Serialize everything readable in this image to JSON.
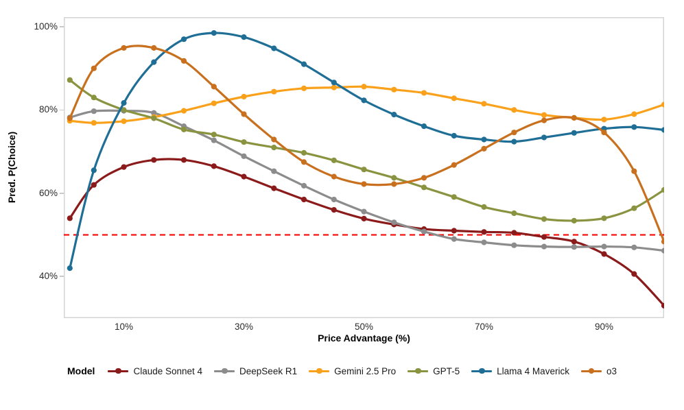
{
  "page": {
    "background": "#ffffff"
  },
  "chart_data": {
    "type": "line",
    "title": "",
    "xlabel": "Price Advantage (%)",
    "ylabel": "Pred. P(Choice)",
    "xlim": [
      0,
      100
    ],
    "ylim": [
      30,
      102.3
    ],
    "grid": false,
    "legend": {
      "title": "Model",
      "position": "bottom"
    },
    "reference_line": {
      "y": 50,
      "color": "#FF0000",
      "style": "dashed"
    },
    "x_ticks": [
      {
        "value": 10,
        "label": "10%"
      },
      {
        "value": 30,
        "label": "30%"
      },
      {
        "value": 50,
        "label": "50%"
      },
      {
        "value": 70,
        "label": "70%"
      },
      {
        "value": 90,
        "label": "90%"
      }
    ],
    "y_ticks": [
      {
        "value": 40,
        "label": "40%"
      },
      {
        "value": 60,
        "label": "60%"
      },
      {
        "value": 80,
        "label": "80%"
      },
      {
        "value": 100,
        "label": "100%"
      }
    ],
    "x": [
      1,
      5,
      10,
      15,
      20,
      25,
      30,
      35,
      40,
      45,
      50,
      55,
      60,
      65,
      70,
      75,
      80,
      85,
      90,
      95,
      100
    ],
    "series": [
      {
        "name": "Claude Sonnet 4",
        "color": "#8B1A1A",
        "values": [
          54,
          62,
          66.3,
          68,
          68,
          66.5,
          64,
          61.2,
          58.5,
          56,
          53.9,
          52.5,
          51.4,
          51,
          50.7,
          50.5,
          49.5,
          48.4,
          45.4,
          40.6,
          33
        ]
      },
      {
        "name": "DeepSeek R1",
        "color": "#8C8C8C",
        "values": [
          78.2,
          79.7,
          79.8,
          79.3,
          76.1,
          72.7,
          68.9,
          65.3,
          61.8,
          58.5,
          55.6,
          53,
          50.8,
          49,
          48.2,
          47.5,
          47.2,
          47.1,
          47.2,
          47,
          46.2
        ]
      },
      {
        "name": "Gemini 2.5 Pro",
        "color": "#F9A11B",
        "values": [
          77.4,
          76.9,
          77.3,
          78.3,
          79.8,
          81.6,
          83.2,
          84.4,
          85.2,
          85.4,
          85.6,
          84.9,
          84.1,
          82.8,
          81.5,
          80,
          78.8,
          78.1,
          77.7,
          79,
          81.3
        ]
      },
      {
        "name": "GPT-5",
        "color": "#8A9440",
        "values": [
          87.2,
          83,
          80,
          78,
          75.3,
          74.1,
          72.3,
          71,
          69.7,
          67.9,
          65.7,
          63.7,
          61.4,
          59.1,
          56.7,
          55.2,
          53.8,
          53.4,
          54,
          56.4,
          60.8
        ]
      },
      {
        "name": "Llama 4 Maverick",
        "color": "#1F6E96",
        "values": [
          42,
          65.5,
          81.7,
          91.5,
          97,
          98.5,
          97.5,
          94.8,
          91,
          86.6,
          82.3,
          78.9,
          76.1,
          73.8,
          72.9,
          72.4,
          73.4,
          74.5,
          75.5,
          75.9,
          75.2
        ]
      },
      {
        "name": "o3",
        "color": "#C8701E",
        "values": [
          78,
          90,
          94.9,
          94.9,
          91.8,
          85.6,
          79,
          72.9,
          67.5,
          64,
          62.2,
          62.2,
          63.7,
          66.8,
          70.7,
          74.6,
          77.5,
          78.1,
          74.6,
          65.3,
          48.4
        ]
      }
    ]
  }
}
